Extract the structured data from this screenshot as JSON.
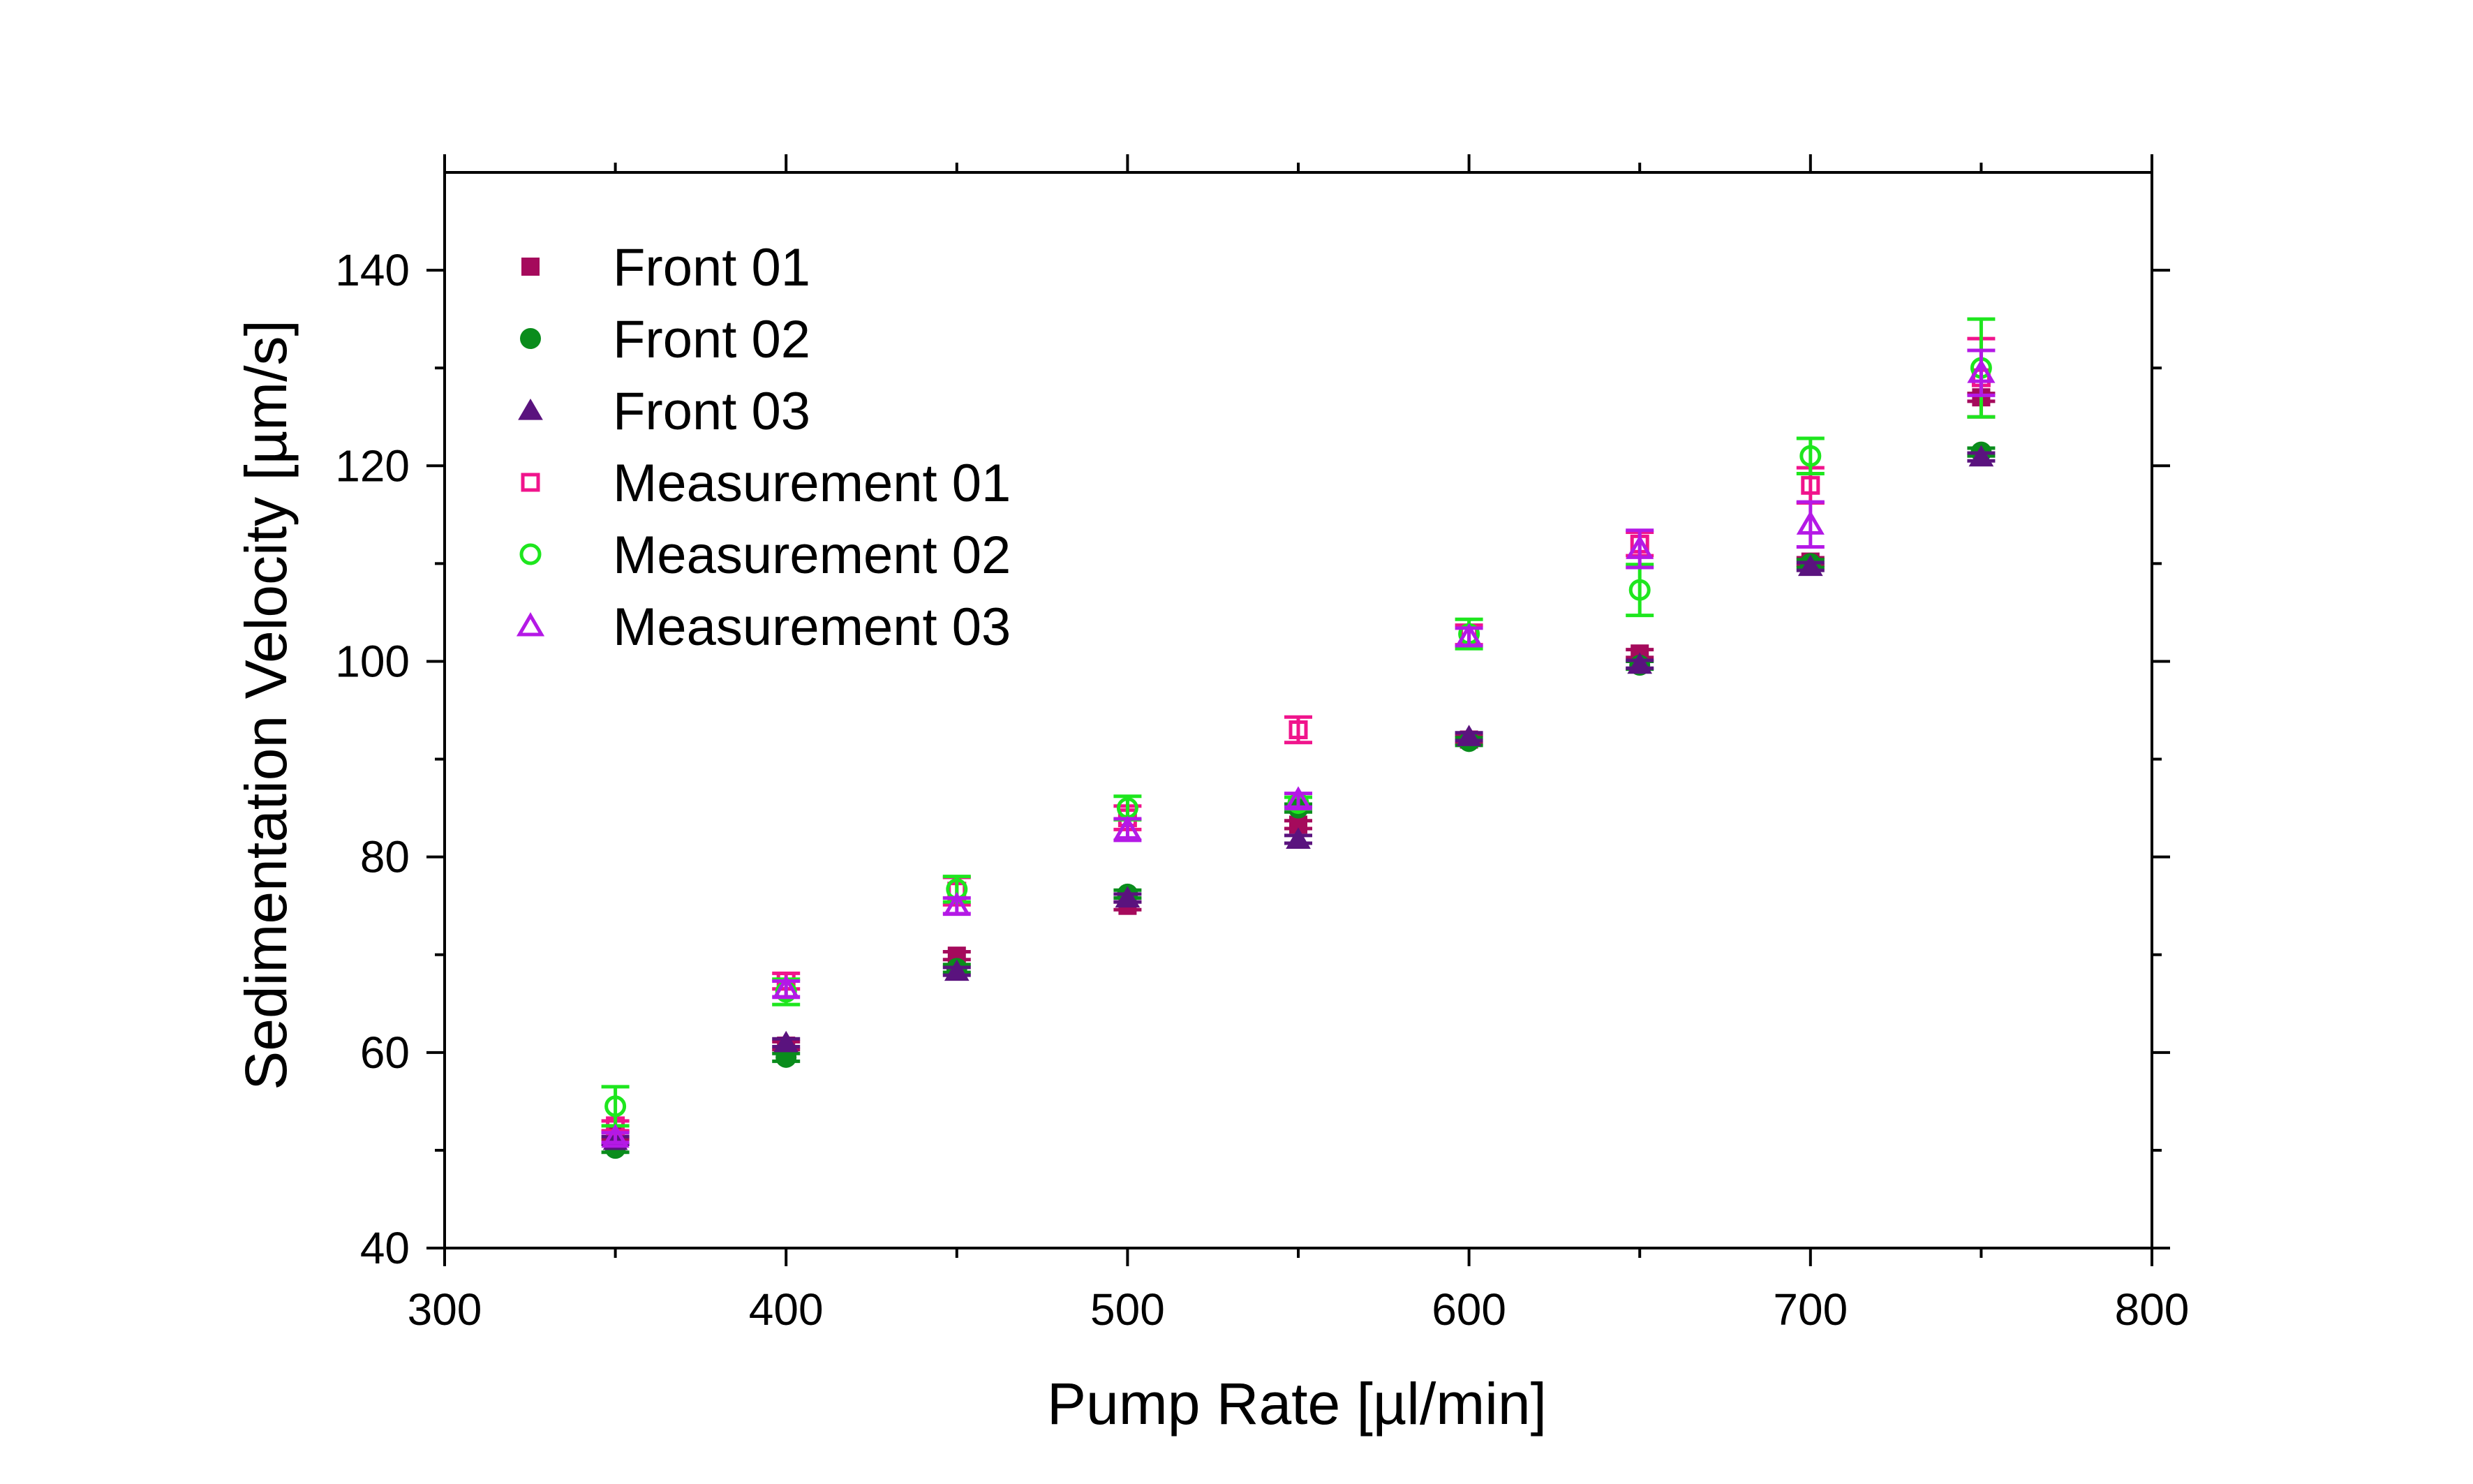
{
  "chart_data": {
    "type": "scatter",
    "title": "",
    "xlabel": "Pump Rate [µl/min]",
    "ylabel": "Sedimentation Velocity [µm/s]",
    "xlim": [
      300,
      800
    ],
    "ylim": [
      40,
      150
    ],
    "xticks": [
      300,
      400,
      500,
      600,
      700,
      800
    ],
    "yticks": [
      40,
      60,
      80,
      100,
      120,
      140
    ],
    "grid": false,
    "legend_position": "top-left",
    "series": [
      {
        "name": "Front 01",
        "marker": "square",
        "filled": true,
        "color": "#a50a5c",
        "points": [
          {
            "x": 350,
            "y": 51.5,
            "err": 0.4
          },
          {
            "x": 400,
            "y": 60.7,
            "err": 0.4
          },
          {
            "x": 450,
            "y": 69.9,
            "err": 0.4
          },
          {
            "x": 500,
            "y": 75.0,
            "err": 0.4
          },
          {
            "x": 550,
            "y": 83.3,
            "err": 0.4
          },
          {
            "x": 600,
            "y": 92.0,
            "err": 0.4
          },
          {
            "x": 650,
            "y": 100.8,
            "err": 0.4
          },
          {
            "x": 700,
            "y": 110.2,
            "err": 0.4
          },
          {
            "x": 750,
            "y": 127.0,
            "err": 0.4
          }
        ]
      },
      {
        "name": "Front 02",
        "marker": "circle",
        "filled": true,
        "color": "#0a8c1c",
        "points": [
          {
            "x": 350,
            "y": 50.2,
            "err": 0.4
          },
          {
            "x": 400,
            "y": 59.5,
            "err": 0.4
          },
          {
            "x": 450,
            "y": 68.6,
            "err": 0.4
          },
          {
            "x": 500,
            "y": 76.2,
            "err": 0.4
          },
          {
            "x": 550,
            "y": 85.0,
            "err": 0.4
          },
          {
            "x": 600,
            "y": 91.8,
            "err": 0.4
          },
          {
            "x": 650,
            "y": 99.6,
            "err": 0.4
          },
          {
            "x": 700,
            "y": 110.0,
            "err": 0.4
          },
          {
            "x": 750,
            "y": 121.4,
            "err": 0.4
          }
        ]
      },
      {
        "name": "Front 03",
        "marker": "triangle",
        "filled": true,
        "color": "#5a137e",
        "points": [
          {
            "x": 350,
            "y": 51.0,
            "err": 0.4
          },
          {
            "x": 400,
            "y": 61.0,
            "err": 0.4
          },
          {
            "x": 450,
            "y": 68.3,
            "err": 0.4
          },
          {
            "x": 500,
            "y": 75.8,
            "err": 0.4
          },
          {
            "x": 550,
            "y": 81.8,
            "err": 0.4
          },
          {
            "x": 600,
            "y": 92.3,
            "err": 0.4
          },
          {
            "x": 650,
            "y": 99.7,
            "err": 0.4
          },
          {
            "x": 700,
            "y": 109.7,
            "err": 0.4
          },
          {
            "x": 750,
            "y": 120.9,
            "err": 0.4
          }
        ]
      },
      {
        "name": "Measurement 01",
        "marker": "square",
        "filled": false,
        "color": "#f0148c",
        "points": [
          {
            "x": 350,
            "y": 52.5,
            "err": 0.5
          },
          {
            "x": 400,
            "y": 67.3,
            "err": 0.8
          },
          {
            "x": 450,
            "y": 76.5,
            "err": 1.4
          },
          {
            "x": 500,
            "y": 84.0,
            "err": 1.2
          },
          {
            "x": 550,
            "y": 93.0,
            "err": 1.3
          },
          {
            "x": 600,
            "y": 102.7,
            "err": 1.0
          },
          {
            "x": 650,
            "y": 112.0,
            "err": 1.2
          },
          {
            "x": 700,
            "y": 118.0,
            "err": 1.8
          },
          {
            "x": 750,
            "y": 129.0,
            "err": 4.0
          }
        ]
      },
      {
        "name": "Measurement 02",
        "marker": "circle",
        "filled": false,
        "color": "#1ee61e",
        "points": [
          {
            "x": 350,
            "y": 54.5,
            "err": 2.0
          },
          {
            "x": 400,
            "y": 66.2,
            "err": 1.3
          },
          {
            "x": 450,
            "y": 76.7,
            "err": 1.3
          },
          {
            "x": 500,
            "y": 85.0,
            "err": 1.2
          },
          {
            "x": 550,
            "y": 85.5,
            "err": 0.6
          },
          {
            "x": 600,
            "y": 102.8,
            "err": 1.5
          },
          {
            "x": 650,
            "y": 107.3,
            "err": 2.6
          },
          {
            "x": 700,
            "y": 121.0,
            "err": 1.8
          },
          {
            "x": 750,
            "y": 130.0,
            "err": 5.0
          }
        ]
      },
      {
        "name": "Measurement 03",
        "marker": "triangle",
        "filled": false,
        "color": "#b419e6",
        "points": [
          {
            "x": 350,
            "y": 51.3,
            "err": 0.5
          },
          {
            "x": 400,
            "y": 66.5,
            "err": 0.8
          },
          {
            "x": 450,
            "y": 75.0,
            "err": 0.8
          },
          {
            "x": 500,
            "y": 82.8,
            "err": 1.1
          },
          {
            "x": 550,
            "y": 85.8,
            "err": 0.7
          },
          {
            "x": 600,
            "y": 102.5,
            "err": 0.9
          },
          {
            "x": 650,
            "y": 111.5,
            "err": 1.9
          },
          {
            "x": 700,
            "y": 114.0,
            "err": 2.3
          },
          {
            "x": 750,
            "y": 129.5,
            "err": 2.3
          }
        ]
      }
    ]
  }
}
